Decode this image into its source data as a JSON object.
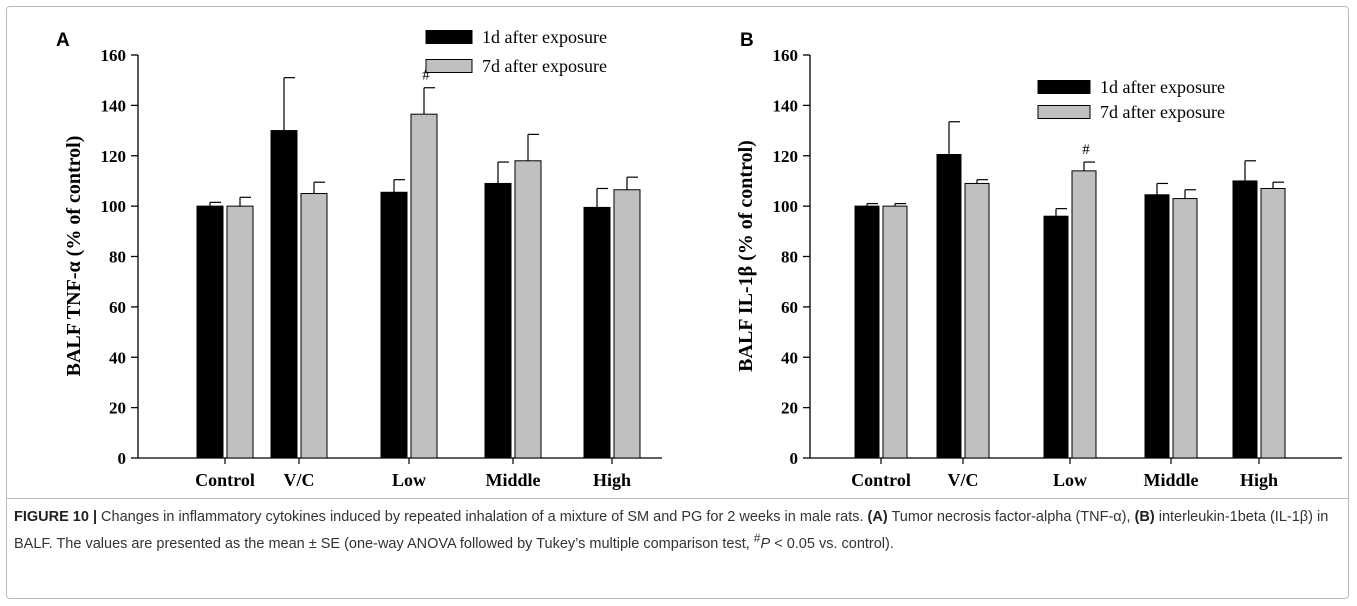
{
  "legend": {
    "series1": "1d after exposure",
    "series2": "7d after exposure"
  },
  "colors": {
    "series1": "#000000",
    "series2": "#c0c0c0"
  },
  "chart_data": [
    {
      "panel": "A",
      "type": "bar",
      "title": "",
      "xlabel": "",
      "ylabel": "BALF TNF-α (% of control)",
      "ylim": [
        0,
        160
      ],
      "yticks": [
        "0",
        "20",
        "40",
        "60",
        "80",
        "100",
        "120",
        "140",
        "160"
      ],
      "categories": [
        "Control",
        "V/C",
        "Low",
        "Middle",
        "High"
      ],
      "legend_position": "top-right",
      "series": [
        {
          "name": "1d after exposure",
          "values": [
            100,
            130,
            105.5,
            109,
            99.5
          ],
          "errors": [
            1.5,
            21,
            5,
            8.5,
            7.5
          ]
        },
        {
          "name": "7d after exposure",
          "values": [
            100,
            105,
            136.5,
            118,
            106.5
          ],
          "errors": [
            3.5,
            4.5,
            10.5,
            10.5,
            5
          ]
        }
      ],
      "annotations": [
        {
          "category": "Low",
          "series": "7d after exposure",
          "text": "#"
        }
      ]
    },
    {
      "panel": "B",
      "type": "bar",
      "title": "",
      "xlabel": "",
      "ylabel": "BALF IL-1β (% of control)",
      "ylim": [
        0,
        160
      ],
      "yticks": [
        "0",
        "20",
        "40",
        "60",
        "80",
        "100",
        "120",
        "140",
        "160"
      ],
      "categories": [
        "Control",
        "V/C",
        "Low",
        "Middle",
        "High"
      ],
      "legend_position": "top-right",
      "series": [
        {
          "name": "1d after exposure",
          "values": [
            100,
            120.5,
            96,
            104.5,
            110
          ],
          "errors": [
            1,
            13,
            3,
            4.5,
            8
          ]
        },
        {
          "name": "7d after exposure",
          "values": [
            100,
            109,
            114,
            103,
            107
          ],
          "errors": [
            1,
            1.5,
            3.5,
            3.5,
            2.5
          ]
        }
      ],
      "annotations": [
        {
          "category": "Low",
          "series": "7d after exposure",
          "text": "#"
        }
      ]
    }
  ],
  "caption": {
    "label": "FIGURE 10 |",
    "text1": " Changes in inflammatory cytokines induced by repeated inhalation of a mixture of SM and PG for 2 weeks in male rats. ",
    "partA": "(A)",
    "text2": " Tumor necrosis factor-alpha (TNF-α), ",
    "partB": "(B)",
    "text3": " interleukin-1beta (IL-1β) in BALF. The values are presented as the mean ± SE (one-way ANOVA followed by Tukey’s multiple comparison test, ",
    "sig_mark": "#",
    "p_label": "P",
    "text4": " < 0.05 vs. control)."
  }
}
